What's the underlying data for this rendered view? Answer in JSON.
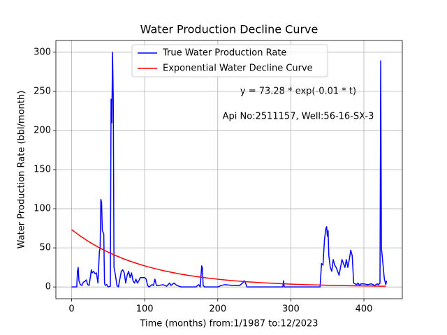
{
  "chart_data": {
    "type": "line",
    "title": "Water Production Decline Curve",
    "x_label": "Time (months) from:1/1987 to:12/2023",
    "y_label": "Water Production Rate (bbl/month)",
    "annotations": [
      "y = 73.28 * exp(-0.01 * t)",
      "Api No:2511157, Well:56-16-SX-3"
    ],
    "xlim": [
      -21.55,
      452.55
    ],
    "ylim": [
      -15,
      315
    ],
    "xticks": [
      0,
      100,
      200,
      300,
      400
    ],
    "yticks": [
      0,
      50,
      100,
      150,
      200,
      250,
      300
    ],
    "grid": true,
    "legend": "upper center",
    "series": [
      {
        "name": "True Water Production Rate",
        "color": "#0000ff",
        "x": [
          0,
          7,
          8,
          9,
          10,
          12,
          14,
          16,
          18,
          20,
          22,
          24,
          26,
          27,
          28,
          30,
          32,
          34,
          36,
          38,
          39,
          40,
          41,
          42,
          43,
          44,
          45,
          46,
          48,
          50,
          53,
          54,
          55,
          56,
          57,
          58,
          60,
          62,
          64,
          66,
          68,
          70,
          72,
          74,
          76,
          78,
          80,
          82,
          84,
          86,
          88,
          90,
          92,
          94,
          96,
          100,
          102,
          104,
          106,
          110,
          112,
          114,
          116,
          120,
          125,
          130,
          134,
          136,
          140,
          144,
          150,
          170,
          174,
          176,
          178,
          179,
          180,
          182,
          200,
          205,
          210,
          220,
          230,
          234,
          236,
          238,
          240,
          260,
          289,
          290,
          291,
          300,
          320,
          340,
          342,
          344,
          346,
          348,
          349,
          350,
          351,
          352,
          354,
          356,
          358,
          360,
          362,
          364,
          366,
          368,
          370,
          372,
          374,
          376,
          378,
          380,
          382,
          384,
          386,
          390,
          392,
          394,
          396,
          400,
          405,
          410,
          415,
          418,
          420,
          422,
          423,
          424,
          426,
          428,
          430,
          431
        ],
        "values": [
          0,
          0,
          20,
          25,
          8,
          3,
          2,
          6,
          7,
          9,
          3,
          2,
          15,
          22,
          18,
          20,
          17,
          18,
          5,
          45,
          50,
          112,
          108,
          72,
          70,
          68,
          5,
          2,
          3,
          0,
          1,
          240,
          210,
          300,
          240,
          25,
          15,
          2,
          0,
          10,
          20,
          22,
          18,
          5,
          15,
          20,
          12,
          18,
          8,
          5,
          10,
          5,
          8,
          12,
          12,
          12,
          10,
          2,
          0,
          3,
          2,
          10,
          2,
          2,
          3,
          1,
          5,
          2,
          5,
          2,
          0,
          0,
          3,
          0,
          27,
          24,
          2,
          0,
          0,
          2,
          3,
          2,
          2,
          5,
          8,
          5,
          0,
          0,
          0,
          8,
          0,
          0,
          0,
          0,
          30,
          28,
          60,
          75,
          77,
          65,
          72,
          40,
          25,
          20,
          35,
          28,
          25,
          20,
          15,
          25,
          35,
          30,
          25,
          35,
          25,
          35,
          47,
          40,
          5,
          3,
          5,
          2,
          4,
          4,
          3,
          4,
          2,
          4,
          3,
          5,
          289,
          50,
          30,
          10,
          3,
          8
        ]
      },
      {
        "name": "Exponential Water Decline Curve",
        "color": "#ff0000",
        "x": [
          0,
          10,
          20,
          30,
          40,
          50,
          60,
          70,
          80,
          90,
          100,
          110,
          120,
          130,
          140,
          150,
          160,
          170,
          180,
          190,
          200,
          210,
          220,
          230,
          240,
          250,
          260,
          270,
          280,
          290,
          300,
          310,
          320,
          330,
          340,
          350,
          360,
          370,
          380,
          390,
          400,
          410,
          420,
          430
        ],
        "values": [
          73.28,
          66.31,
          60.0,
          54.29,
          49.12,
          44.45,
          40.22,
          36.39,
          32.93,
          29.8,
          26.96,
          24.4,
          22.07,
          19.97,
          18.07,
          16.35,
          14.8,
          13.39,
          12.11,
          10.96,
          9.92,
          8.97,
          8.12,
          7.35,
          6.65,
          6.02,
          5.44,
          4.93,
          4.46,
          4.03,
          3.65,
          3.3,
          2.99,
          2.7,
          2.45,
          2.21,
          2.0,
          1.81,
          1.64,
          1.48,
          1.34,
          1.22,
          1.1,
          0.99
        ]
      }
    ]
  }
}
